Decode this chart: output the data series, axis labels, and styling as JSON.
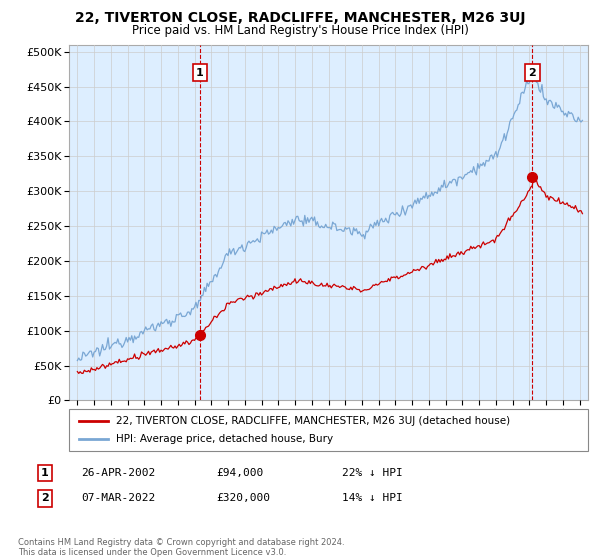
{
  "title": "22, TIVERTON CLOSE, RADCLIFFE, MANCHESTER, M26 3UJ",
  "subtitle": "Price paid vs. HM Land Registry's House Price Index (HPI)",
  "ytick_values": [
    0,
    50000,
    100000,
    150000,
    200000,
    250000,
    300000,
    350000,
    400000,
    450000,
    500000
  ],
  "ylim": [
    0,
    510000
  ],
  "xlim_start": 1994.5,
  "xlim_end": 2025.5,
  "transaction1_year": 2002.32,
  "transaction1_price": 94000,
  "transaction2_year": 2022.18,
  "transaction2_price": 320000,
  "hpi_color": "#7aa7d4",
  "hpi_fill_color": "#ddeeff",
  "sold_color": "#cc0000",
  "vline_color": "#cc0000",
  "background_color": "#ffffff",
  "grid_color": "#cccccc",
  "legend_line1": "22, TIVERTON CLOSE, RADCLIFFE, MANCHESTER, M26 3UJ (detached house)",
  "legend_line2": "HPI: Average price, detached house, Bury",
  "note_label1": "1",
  "note_date1": "26-APR-2002",
  "note_price1": "£94,000",
  "note_pct1": "22% ↓ HPI",
  "note_label2": "2",
  "note_date2": "07-MAR-2022",
  "note_price2": "£320,000",
  "note_pct2": "14% ↓ HPI",
  "footnote": "Contains HM Land Registry data © Crown copyright and database right 2024.\nThis data is licensed under the Open Government Licence v3.0."
}
